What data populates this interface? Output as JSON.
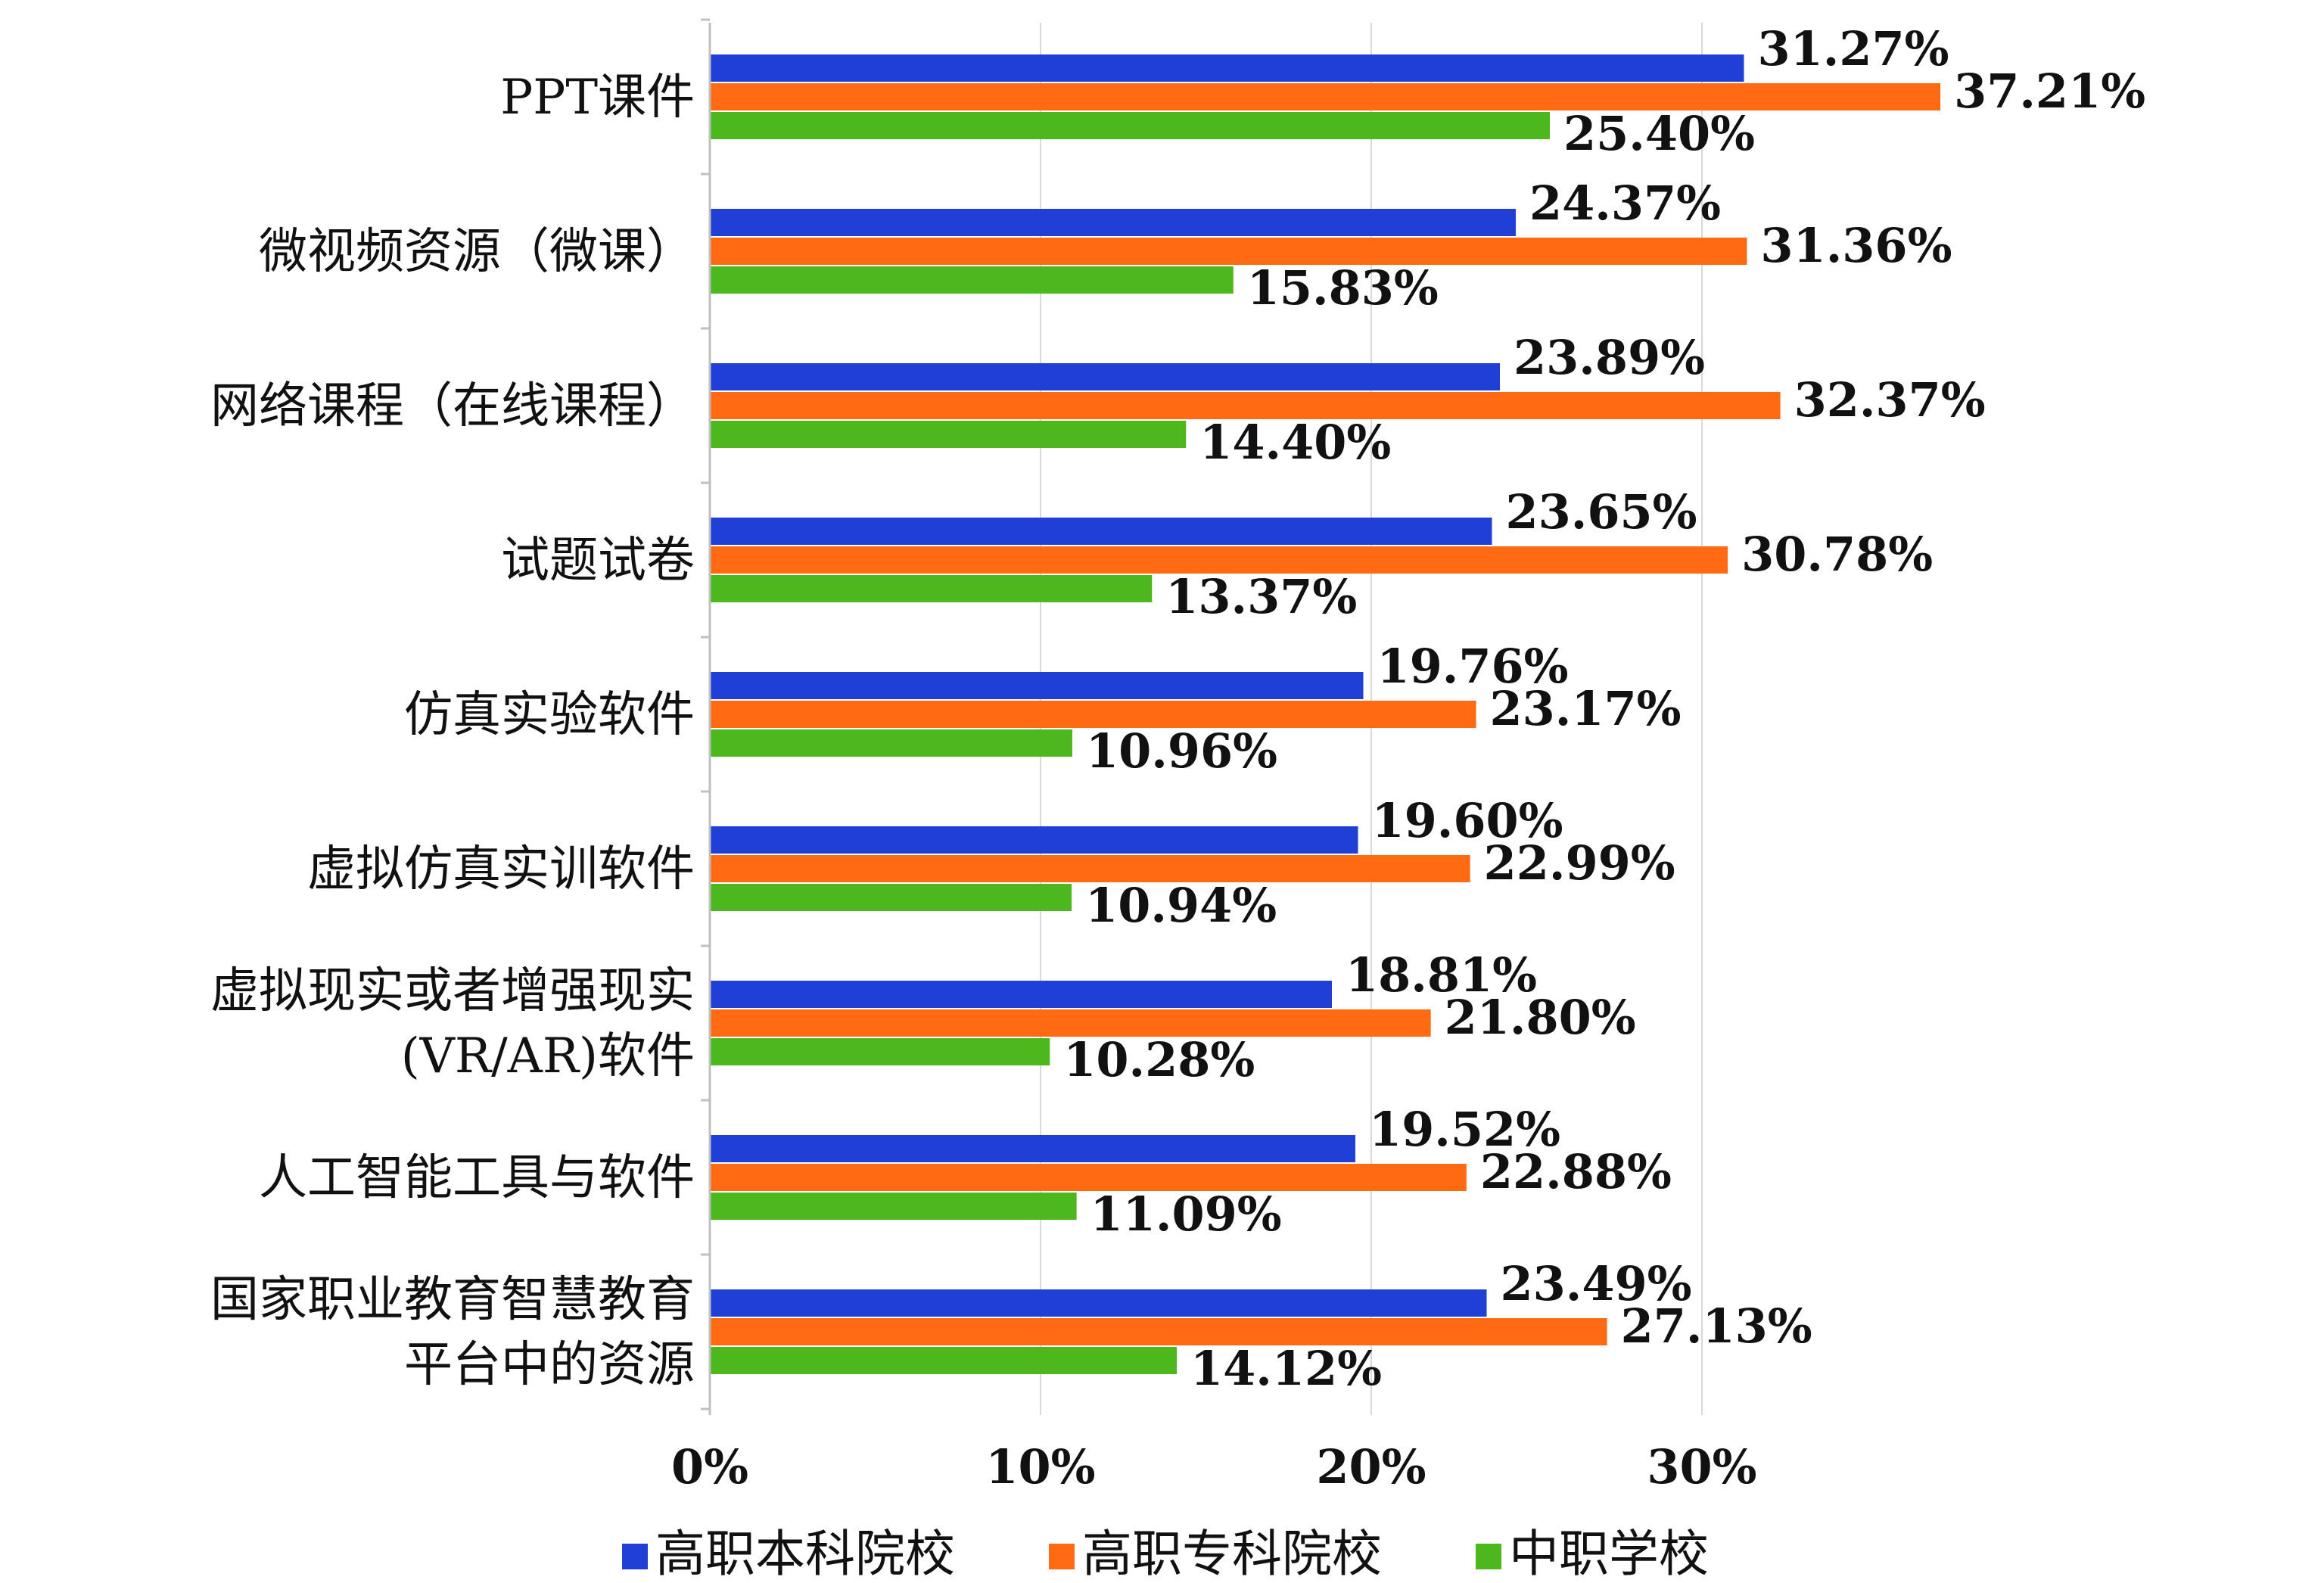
{
  "chart_data": {
    "type": "bar",
    "orientation": "horizontal",
    "categories": [
      [
        "PPT课件"
      ],
      [
        "微视频资源（微课）"
      ],
      [
        "网络课程（在线课程）"
      ],
      [
        "试题试卷"
      ],
      [
        "仿真实验软件"
      ],
      [
        "虚拟仿真实训软件"
      ],
      [
        "虚拟现实或者增强现实",
        "(VR/AR)软件"
      ],
      [
        "人工智能工具与软件"
      ],
      [
        "国家职业教育智慧教育",
        "平台中的资源"
      ]
    ],
    "series": [
      {
        "name": "高职本科院校",
        "color": "#1f3fd6",
        "values": [
          31.27,
          24.37,
          23.89,
          23.65,
          19.76,
          19.6,
          18.81,
          19.52,
          23.49
        ],
        "labels": [
          "31.27%",
          "24.37%",
          "23.89%",
          "23.65%",
          "19.76%",
          "19.60%",
          "18.81%",
          "19.52%",
          "23.49%"
        ]
      },
      {
        "name": "高职专科院校",
        "color": "#ff6a13",
        "values": [
          37.21,
          31.36,
          32.37,
          30.78,
          23.17,
          22.99,
          21.8,
          22.88,
          27.13
        ],
        "labels": [
          "37.21%",
          "31.36%",
          "32.37%",
          "30.78%",
          "23.17%",
          "22.99%",
          "21.80%",
          "22.88%",
          "27.13%"
        ]
      },
      {
        "name": "中职学校",
        "color": "#4cb81e",
        "values": [
          25.4,
          15.83,
          14.4,
          13.37,
          10.96,
          10.94,
          10.28,
          11.09,
          14.12
        ],
        "labels": [
          "25.40%",
          "15.83%",
          "14.40%",
          "13.37%",
          "10.96%",
          "10.94%",
          "10.28%",
          "11.09%",
          "14.12%"
        ]
      }
    ],
    "xticks": [
      "0%",
      "10%",
      "20%",
      "30%"
    ],
    "xlim": [
      0,
      40
    ],
    "grid": true,
    "legend_position": "bottom"
  }
}
